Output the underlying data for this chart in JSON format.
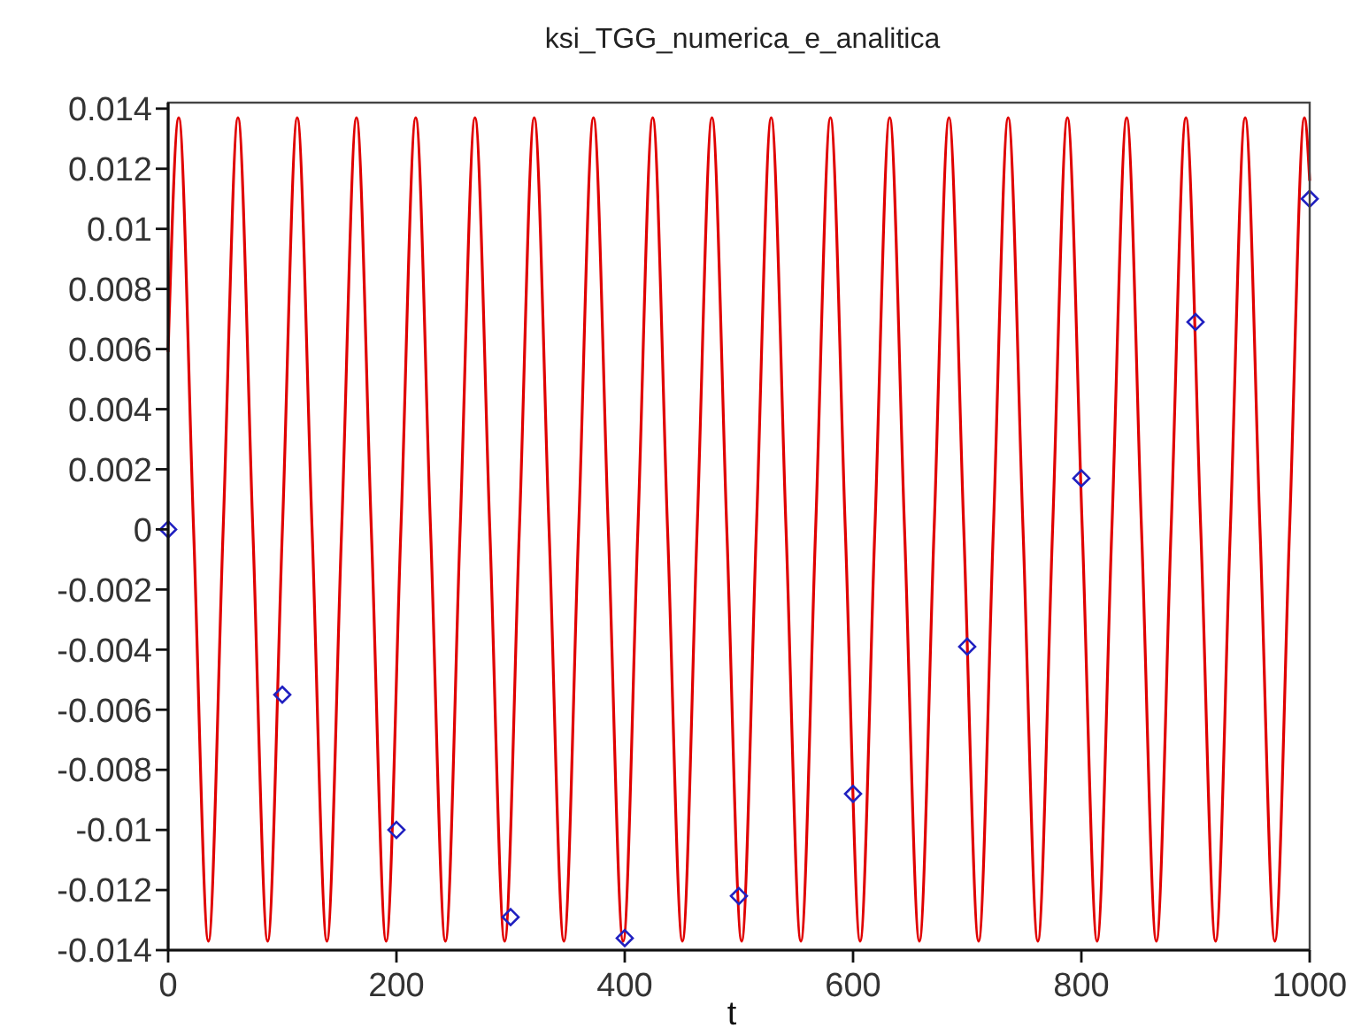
{
  "chart_data": {
    "type": "line",
    "title": "ksi_TGG_numerica_e_analitica",
    "xlabel": "t",
    "xlim": [
      0,
      1000
    ],
    "ylim": [
      -0.014,
      0.0142
    ],
    "xticks": [
      0,
      200,
      400,
      600,
      800,
      1000
    ],
    "yticks": [
      -0.014,
      -0.012,
      -0.01,
      -0.008,
      -0.006,
      -0.004,
      -0.002,
      0,
      0.002,
      0.004,
      0.006,
      0.008,
      0.01,
      0.012,
      0.014
    ],
    "grid": false,
    "series": [
      {
        "color": "#e00000",
        "marker": "none",
        "line_style": "solid",
        "x": [
          0,
          9.3,
          22.3,
          35.3,
          48.2,
          61.2,
          74.2,
          87.2,
          100.1,
          113.1,
          126.1,
          139.1,
          152.0,
          165.0,
          178.0,
          191.0,
          203.9,
          216.9,
          229.9,
          242.9,
          255.8,
          268.8,
          281.8,
          294.8,
          307.7,
          320.7,
          333.7,
          346.7,
          359.6,
          372.6,
          385.6,
          398.6,
          411.5,
          424.5,
          437.5,
          450.5,
          463.4,
          476.4,
          489.4,
          502.4,
          515.3,
          528.3,
          541.3,
          554.3,
          567.2,
          580.2,
          593.2,
          606.2,
          619.1,
          632.1,
          645.1,
          658.1,
          671.0,
          684.0,
          697.0,
          710.0,
          722.9,
          735.9,
          748.9,
          761.9,
          774.8,
          787.8,
          800.8,
          813.8,
          826.7,
          839.7,
          852.7,
          865.7,
          878.6,
          891.6,
          904.6,
          917.6,
          930.5,
          943.5,
          956.5,
          969.5,
          982.4,
          995.4,
          1000
        ],
        "values": [
          0.0059,
          0.0137,
          0,
          -0.0137,
          0,
          0.0137,
          0,
          -0.0137,
          0,
          0.0137,
          0,
          -0.0137,
          0,
          0.0137,
          0,
          -0.0137,
          0,
          0.0137,
          0,
          -0.0137,
          0,
          0.0137,
          0,
          -0.0137,
          0,
          0.0137,
          0,
          -0.0137,
          0,
          0.0137,
          0,
          -0.0137,
          0,
          0.0137,
          0,
          -0.0137,
          0,
          0.0137,
          0,
          -0.0137,
          0,
          0.0137,
          0,
          -0.0137,
          0,
          0.0137,
          0,
          -0.0137,
          0,
          0.0137,
          0,
          -0.0137,
          0,
          0.0137,
          0,
          -0.0137,
          0,
          0.0137,
          0,
          -0.0137,
          0,
          0.0137,
          0,
          -0.0137,
          0,
          0.0137,
          0,
          -0.0137,
          0,
          0.0137,
          0,
          -0.0137,
          0,
          0.0137,
          0,
          -0.0137,
          0,
          0.0137,
          0.0116
        ]
      },
      {
        "type": "scatter",
        "color": "#2020c0",
        "marker": "diamond",
        "x": [
          0,
          100,
          200,
          300,
          400,
          500,
          600,
          700,
          800,
          900,
          1000
        ],
        "values": [
          0,
          -0.0055,
          -0.01,
          -0.0129,
          -0.0136,
          -0.0122,
          -0.0088,
          -0.0039,
          0.0017,
          0.0069,
          0.011
        ]
      }
    ]
  }
}
